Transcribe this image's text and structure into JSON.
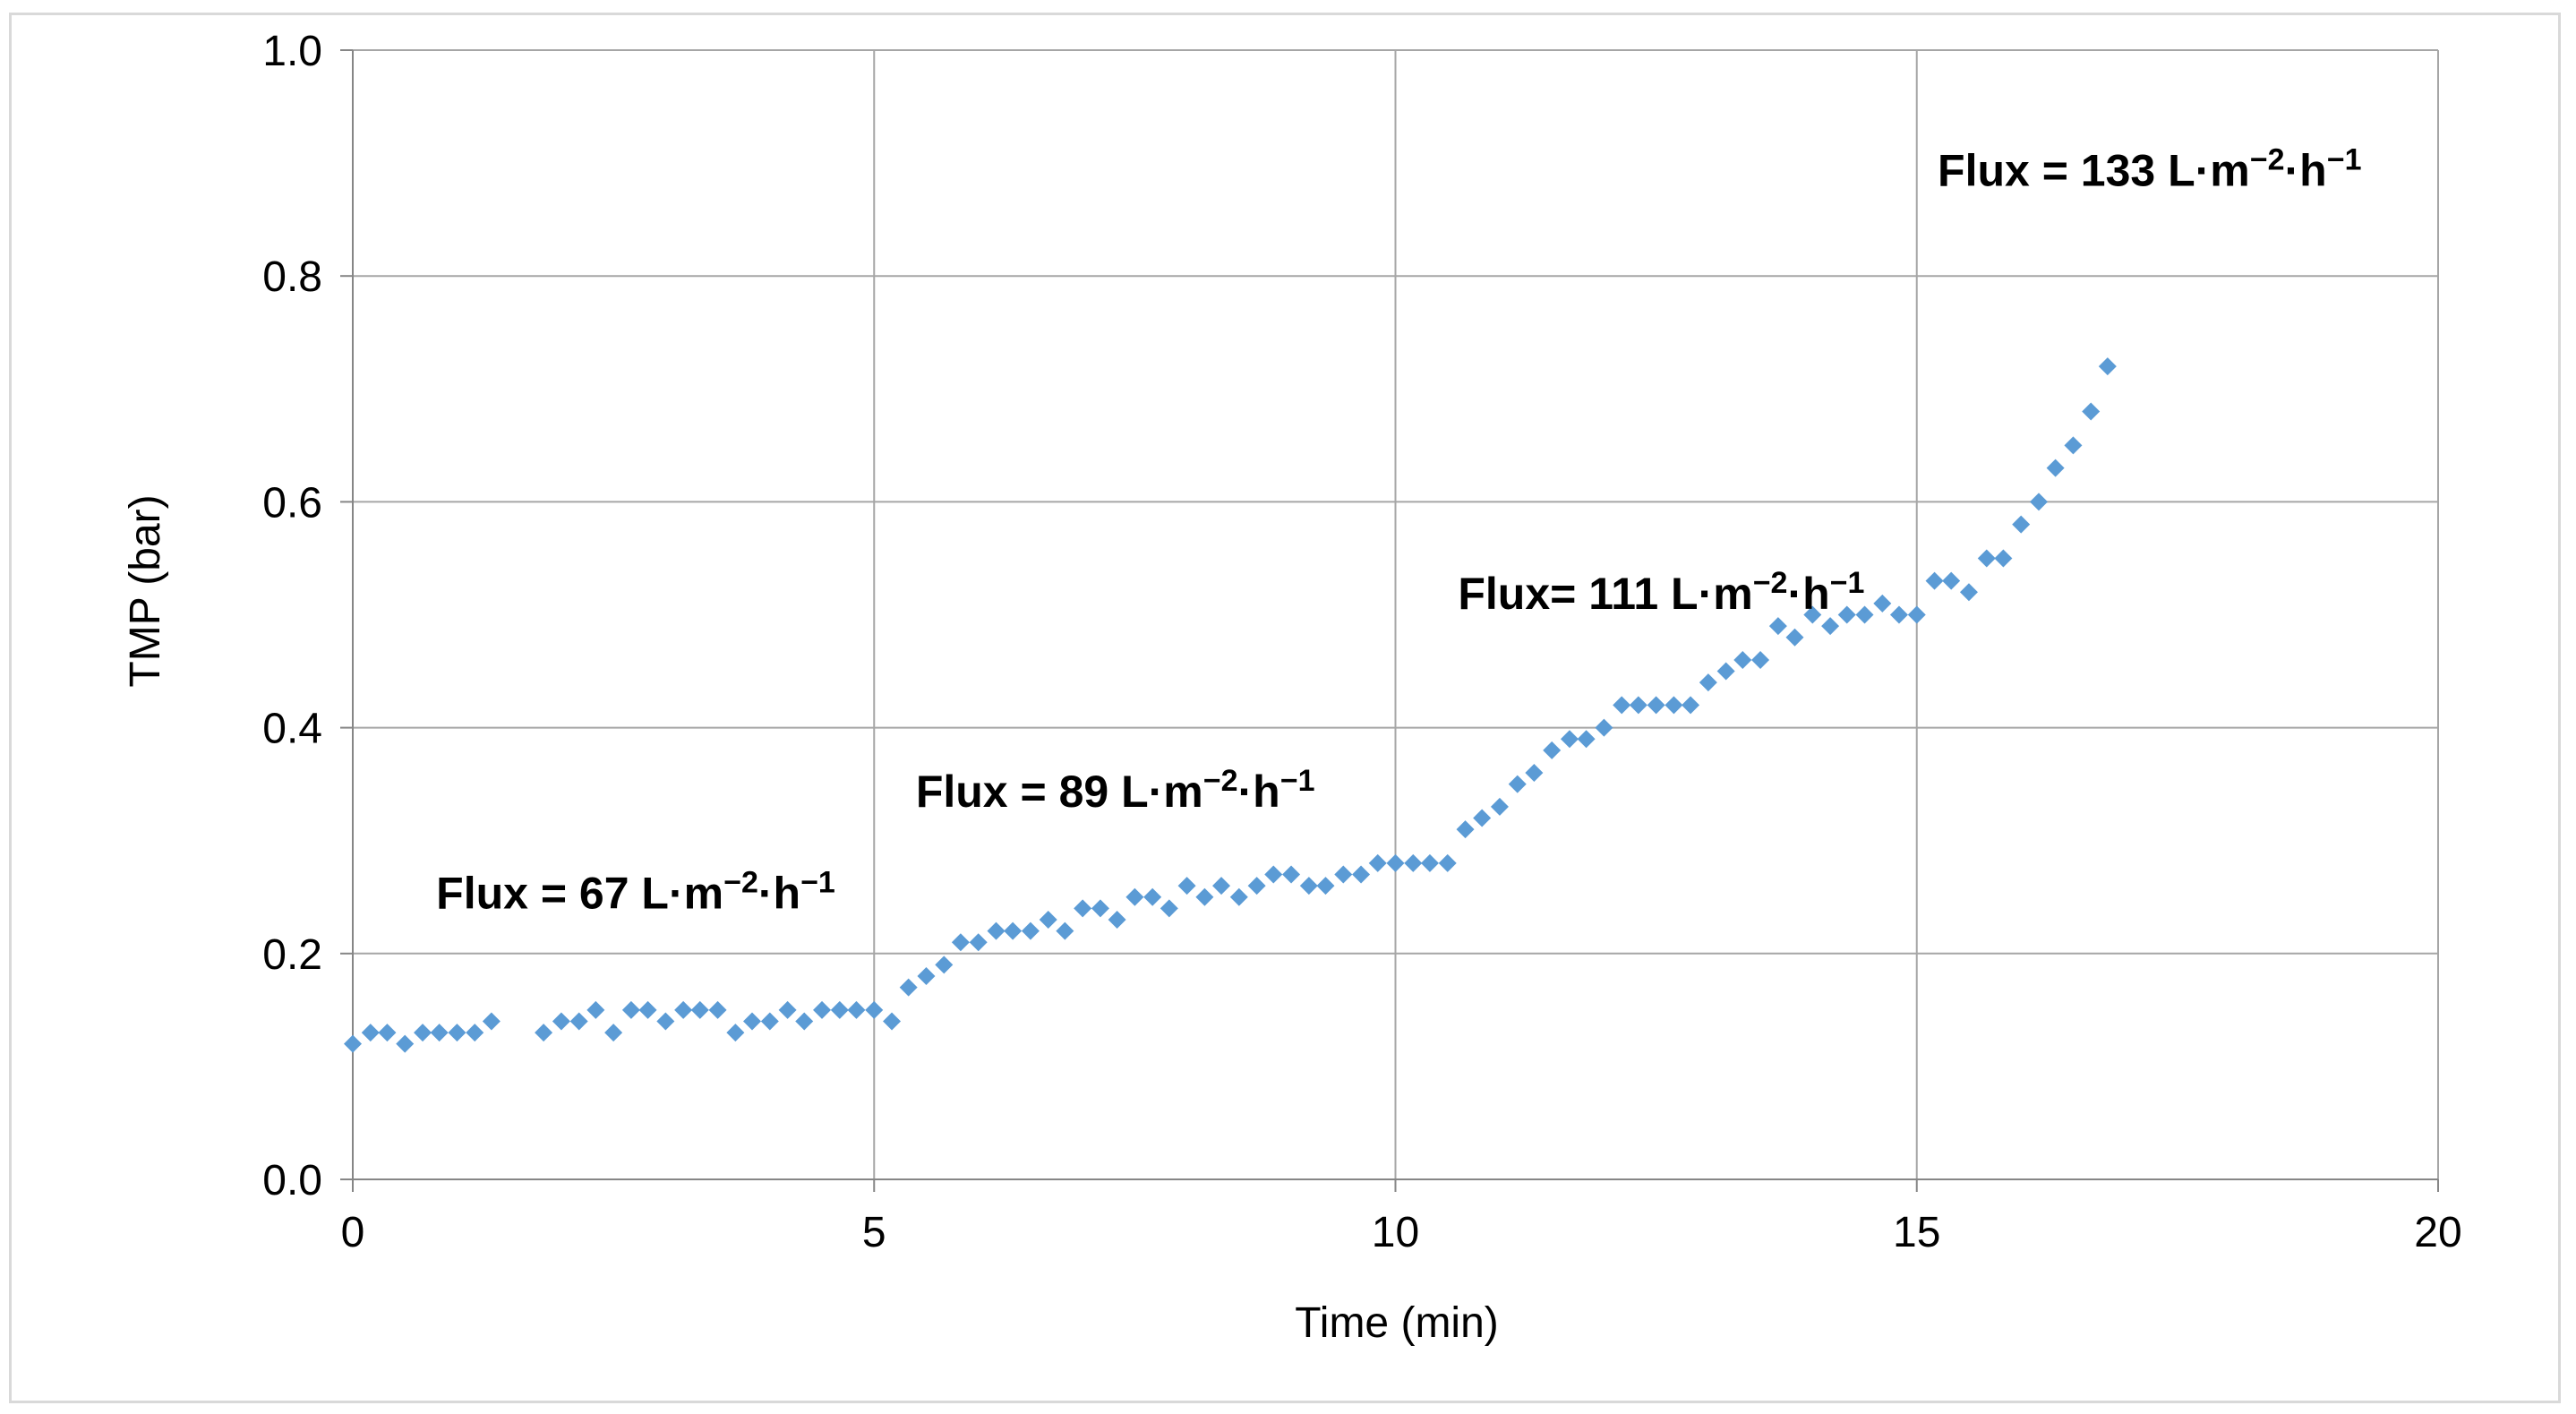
{
  "chart_data": {
    "type": "scatter",
    "xlabel": "Time (min)",
    "ylabel": "TMP (bar)",
    "xlim": [
      0,
      20
    ],
    "ylim": [
      0,
      1.0
    ],
    "xticks": [
      "0",
      "5",
      "10",
      "15",
      "20"
    ],
    "yticks": [
      "0.0",
      "0.2",
      "0.4",
      "0.6",
      "0.8",
      "1.0"
    ],
    "grid": true,
    "legend": "none",
    "marker": "diamond",
    "color": "#5b9bd5",
    "annotations": [
      {
        "main": "Flux = 67 L·m",
        "sup1": "−2",
        "mid": "·h",
        "sup2": "−1",
        "x": 0.8,
        "y": 0.24
      },
      {
        "main": "Flux = 89 L·m",
        "sup1": "−2",
        "mid": "·h",
        "sup2": "−1",
        "x": 5.4,
        "y": 0.33
      },
      {
        "main": "Flux= 111 L·m",
        "sup1": "−2",
        "mid": "·h",
        "sup2": "−1",
        "x": 10.6,
        "y": 0.505
      },
      {
        "main": "Flux = 133 L·m",
        "sup1": "−2",
        "mid": "·h",
        "sup2": "−1",
        "x": 15.2,
        "y": 0.88
      }
    ],
    "series": [
      {
        "x": [
          0.0,
          0.17,
          0.33,
          0.5,
          0.67,
          0.83,
          1.0,
          1.17,
          1.33,
          1.83,
          2.0,
          2.17,
          2.33,
          2.5,
          2.67,
          2.83,
          3.0,
          3.17,
          3.33,
          3.5,
          3.67,
          3.83,
          4.0,
          4.17,
          4.33,
          4.5,
          4.67,
          4.83,
          5.0,
          5.17,
          5.33,
          5.5,
          5.67,
          5.83,
          6.0,
          6.17,
          6.33,
          6.5,
          6.67,
          6.83,
          7.0,
          7.17,
          7.33,
          7.5,
          7.67,
          7.83,
          8.0,
          8.17,
          8.33,
          8.5,
          8.67,
          8.83,
          9.0,
          9.17,
          9.33,
          9.5,
          9.67,
          9.83,
          10.0,
          10.17,
          10.33,
          10.5,
          10.67,
          10.83,
          11.0,
          11.17,
          11.33,
          11.5,
          11.67,
          11.83,
          12.0,
          12.17,
          12.33,
          12.5,
          12.67,
          12.83,
          13.0,
          13.17,
          13.33,
          13.5,
          13.67,
          13.83,
          14.0,
          14.17,
          14.33,
          14.5,
          14.67,
          14.83,
          15.0,
          15.17,
          15.33,
          15.5,
          15.67,
          15.83,
          16.0,
          16.17,
          16.33,
          16.5,
          16.67,
          16.83
        ],
        "y": [
          0.12,
          0.13,
          0.13,
          0.12,
          0.13,
          0.13,
          0.13,
          0.13,
          0.14,
          0.13,
          0.14,
          0.14,
          0.15,
          0.13,
          0.15,
          0.15,
          0.14,
          0.15,
          0.15,
          0.15,
          0.13,
          0.14,
          0.14,
          0.15,
          0.14,
          0.15,
          0.15,
          0.15,
          0.15,
          0.14,
          0.17,
          0.18,
          0.19,
          0.21,
          0.21,
          0.22,
          0.22,
          0.22,
          0.23,
          0.22,
          0.24,
          0.24,
          0.23,
          0.25,
          0.25,
          0.24,
          0.26,
          0.25,
          0.26,
          0.25,
          0.26,
          0.27,
          0.27,
          0.26,
          0.26,
          0.27,
          0.27,
          0.28,
          0.28,
          0.28,
          0.28,
          0.28,
          0.31,
          0.32,
          0.33,
          0.35,
          0.36,
          0.38,
          0.39,
          0.39,
          0.4,
          0.42,
          0.42,
          0.42,
          0.42,
          0.42,
          0.44,
          0.45,
          0.46,
          0.46,
          0.49,
          0.48,
          0.5,
          0.49,
          0.5,
          0.5,
          0.51,
          0.5,
          0.5,
          0.53,
          0.53,
          0.52,
          0.55,
          0.55,
          0.58,
          0.6,
          0.63,
          0.65,
          0.68,
          0.72
        ]
      }
    ]
  }
}
